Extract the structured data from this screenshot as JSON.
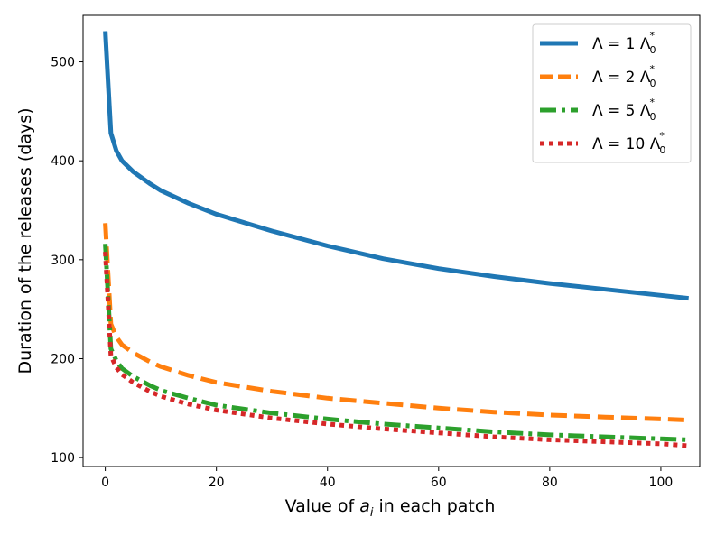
{
  "chart_data": {
    "type": "line",
    "xlabel_prefix": "Value of ",
    "xlabel_var": "a",
    "xlabel_sub": "i",
    "xlabel_suffix": " in each patch",
    "ylabel": "Duration of the releases (days)",
    "xlim": [
      -4,
      107
    ],
    "ylim": [
      91,
      547
    ],
    "xticks": [
      0,
      20,
      40,
      60,
      80,
      100
    ],
    "yticks": [
      100,
      200,
      300,
      400,
      500
    ],
    "grid": false,
    "legend_position": "top-right",
    "x": [
      0,
      1,
      2,
      3,
      5,
      8,
      10,
      15,
      20,
      30,
      40,
      50,
      60,
      70,
      80,
      90,
      100,
      105
    ],
    "series": [
      {
        "name_prefix": "Λ = 1 Λ",
        "name_sub": "0",
        "name_sup": "*",
        "color": "#1f77b4",
        "dash": "solid",
        "values": [
          531,
          428,
          410,
          400,
          389,
          377,
          370,
          357,
          346,
          329,
          314,
          301,
          291,
          283,
          276,
          270,
          264,
          261
        ]
      },
      {
        "name_prefix": "Λ = 2 Λ",
        "name_sub": "0",
        "name_sup": "*",
        "color": "#ff7f0e",
        "dash": "dashed",
        "values": [
          337,
          235,
          222,
          214,
          206,
          197,
          192,
          183,
          176,
          167,
          160,
          155,
          150,
          146,
          143,
          141,
          139,
          138
        ]
      },
      {
        "name_prefix": "Λ = 5 Λ",
        "name_sub": "0",
        "name_sup": "*",
        "color": "#2ca02c",
        "dash": "dashdot",
        "values": [
          316,
          210,
          198,
          190,
          182,
          173,
          168,
          160,
          153,
          145,
          139,
          134,
          130,
          126,
          123,
          121,
          119,
          118
        ]
      },
      {
        "name_prefix": "Λ = 10 Λ",
        "name_sub": "0",
        "name_sup": "*",
        "color": "#d62728",
        "dash": "dotted",
        "values": [
          308,
          203,
          191,
          184,
          176,
          167,
          162,
          154,
          148,
          140,
          134,
          129,
          125,
          121,
          118,
          116,
          114,
          112
        ]
      }
    ]
  }
}
